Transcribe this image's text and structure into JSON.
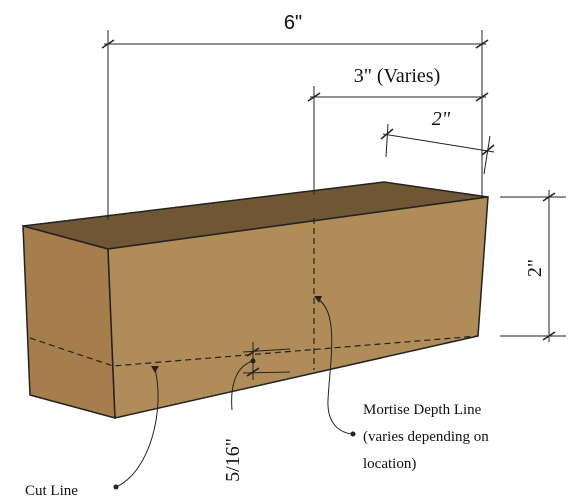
{
  "colors": {
    "top_face": "#6f5634",
    "front_face": "#b08c58",
    "end_face": "#a67e4c",
    "outline": "#222222",
    "dim_line": "#222222"
  },
  "dimensions": {
    "overall_length": "6\"",
    "mortise_position": "3\" (Varies)",
    "mortise_width": "2\"",
    "height": "2\"",
    "offset": "5/16\""
  },
  "callouts": {
    "mortise_depth_line": [
      "Mortise Depth Line",
      "(varies depending on",
      "location)"
    ],
    "cut_line": "Cut Line"
  }
}
